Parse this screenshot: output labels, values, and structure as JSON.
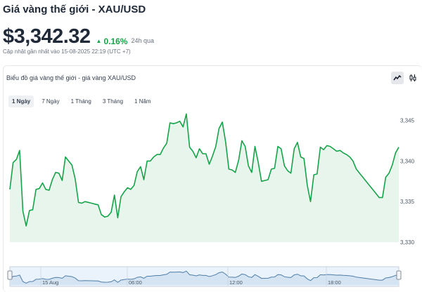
{
  "header": {
    "title": "Giá vàng thế giới - XAU/USD",
    "price": "$3,342.32",
    "change": "0.16%",
    "change_period": "24h qua",
    "updated": "Cập nhật gần nhất vào 15-08-2025 22:19 (UTC +7)"
  },
  "card": {
    "title": "Biểu đồ giá vàng thế giới - giá vàng XAU/USD",
    "tools": [
      {
        "name": "line-chart-icon",
        "active": true
      },
      {
        "name": "candlestick-chart-icon",
        "active": false
      }
    ],
    "tabs": [
      {
        "label": "1 Ngày",
        "active": true
      },
      {
        "label": "7 Ngày",
        "active": false
      },
      {
        "label": "1 Tháng",
        "active": false
      },
      {
        "label": "3 Tháng",
        "active": false
      },
      {
        "label": "1 Năm",
        "active": false
      }
    ]
  },
  "colors": {
    "line": "#16a34a",
    "area": "#e8f5ec",
    "up": "#16a34a"
  },
  "chart_data": {
    "type": "area",
    "y_ticks": [
      "3,345",
      "3,340",
      "3,335",
      "3,330"
    ],
    "ylim": [
      3330,
      3346
    ],
    "navigator_labels": [
      "15 Aug",
      "06:00",
      "12:00",
      "18:00"
    ],
    "x": [
      0,
      1,
      2,
      3,
      4,
      5,
      6,
      7,
      8,
      9,
      10,
      11,
      12,
      13,
      14,
      15,
      16,
      17,
      18,
      19,
      20,
      21,
      22,
      23,
      24,
      25,
      26,
      27,
      28,
      29,
      30,
      31,
      32,
      33,
      34,
      35,
      36,
      37,
      38,
      39,
      40,
      41,
      42,
      43,
      44,
      45,
      46,
      47,
      48,
      49,
      50,
      51,
      52,
      53,
      54,
      55,
      56,
      57,
      58,
      59,
      60,
      61,
      62,
      63,
      64,
      65,
      66,
      67,
      68,
      69,
      70,
      71,
      72,
      73,
      74,
      75,
      76,
      77,
      78,
      79,
      80,
      81,
      82,
      83,
      84,
      85,
      86,
      87,
      88,
      89,
      90,
      91,
      92,
      93,
      94,
      95,
      96,
      97,
      98,
      99,
      100,
      101,
      102,
      103,
      104,
      105,
      106,
      107,
      108,
      109,
      110,
      111,
      112,
      113,
      114,
      115,
      116,
      117,
      118,
      119
    ],
    "values": [
      3336.5,
      3339.8,
      3340.2,
      3341.3,
      3333.8,
      3332.0,
      3333.9,
      3334.0,
      3336.5,
      3336.6,
      3337.3,
      3336.5,
      3336.4,
      3337.7,
      3338.6,
      3338.5,
      3337.6,
      3340.5,
      3340.0,
      3339.5,
      3337.8,
      3334.9,
      3334.8,
      3335.0,
      3334.9,
      3334.8,
      3334.7,
      3334.6,
      3333.4,
      3333.1,
      3333.2,
      3333.7,
      3335.8,
      3333.0,
      3335.6,
      3336.2,
      3336.7,
      3336.5,
      3337.0,
      3338.7,
      3339.3,
      3337.7,
      3340.0,
      3340.0,
      3340.5,
      3340.8,
      3340.8,
      3341.6,
      3342.2,
      3344.7,
      3344.6,
      3344.7,
      3344.9,
      3344.2,
      3345.8,
      3341.7,
      3341.2,
      3340.4,
      3341.5,
      3340.9,
      3340.9,
      3339.6,
      3340.6,
      3341.8,
      3344.0,
      3344.8,
      3342.4,
      3339.0,
      3338.9,
      3338.6,
      3340.1,
      3342.5,
      3341.8,
      3339.4,
      3338.6,
      3341.8,
      3339.8,
      3337.5,
      3337.6,
      3337.7,
      3339.0,
      3339.1,
      3341.8,
      3341.5,
      3339.4,
      3338.8,
      3338.5,
      3341.5,
      3342.3,
      3340.5,
      3340.3,
      3337.0,
      3335.0,
      3338.3,
      3338.4,
      3341.7,
      3341.4,
      3341.9,
      3341.8,
      3341.5,
      3341.2,
      3341.3,
      3341.0,
      3340.8,
      3340.5,
      3340.0,
      3339.0,
      3338.5,
      3338.0,
      3337.5,
      3337.0,
      3336.5,
      3336.0,
      3335.5,
      3335.5,
      3338.0,
      3338.5,
      3339.5,
      3341.0,
      3341.7
    ]
  }
}
